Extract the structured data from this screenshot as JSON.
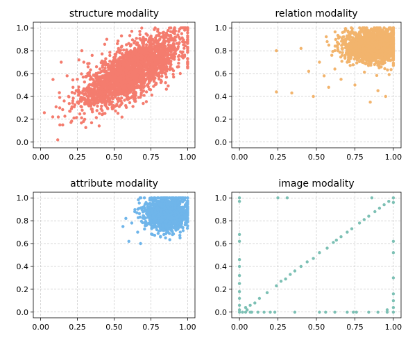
{
  "chart_data": [
    {
      "type": "scatter",
      "title": "structure modality",
      "color": "#f47c6e",
      "xlim": [
        -0.05,
        1.05
      ],
      "ylim": [
        -0.05,
        1.05
      ],
      "xticks": [
        "0.00",
        "0.25",
        "0.50",
        "0.75",
        "1.00"
      ],
      "yticks": [
        "0.0",
        "0.2",
        "0.4",
        "0.6",
        "0.8",
        "1.0"
      ],
      "grid": true,
      "description_of_points": [
        [
          0.14,
          0.7
        ],
        [
          0.18,
          0.58
        ],
        [
          0.12,
          0.22
        ],
        [
          0.13,
          0.3
        ],
        [
          0.16,
          0.36
        ],
        [
          0.19,
          0.4
        ],
        [
          0.15,
          0.15
        ],
        [
          0.2,
          0.27
        ],
        [
          0.22,
          0.48
        ],
        [
          0.25,
          0.55
        ],
        [
          0.26,
          0.72
        ],
        [
          0.28,
          0.8
        ],
        [
          0.3,
          0.45
        ],
        [
          0.32,
          0.6
        ],
        [
          0.34,
          0.35
        ],
        [
          0.36,
          0.52
        ],
        [
          0.38,
          0.66
        ],
        [
          0.4,
          0.42
        ],
        [
          0.42,
          0.58
        ],
        [
          0.44,
          0.7
        ],
        [
          0.46,
          0.48
        ],
        [
          0.48,
          0.62
        ],
        [
          0.5,
          0.55
        ],
        [
          0.52,
          0.68
        ],
        [
          0.54,
          0.74
        ],
        [
          0.56,
          0.6
        ],
        [
          0.58,
          0.78
        ],
        [
          0.6,
          0.66
        ],
        [
          0.62,
          0.72
        ],
        [
          0.64,
          0.82
        ],
        [
          0.66,
          0.7
        ],
        [
          0.68,
          0.76
        ],
        [
          0.7,
          0.86
        ],
        [
          0.72,
          0.78
        ],
        [
          0.74,
          0.84
        ],
        [
          0.76,
          0.9
        ],
        [
          0.78,
          0.8
        ],
        [
          0.8,
          0.88
        ],
        [
          0.82,
          0.92
        ],
        [
          0.84,
          0.86
        ],
        [
          0.86,
          0.94
        ],
        [
          0.88,
          0.9
        ],
        [
          0.9,
          0.96
        ],
        [
          0.92,
          0.92
        ],
        [
          0.94,
          0.97
        ],
        [
          0.96,
          0.95
        ],
        [
          0.98,
          0.98
        ],
        [
          1.0,
          0.99
        ],
        [
          0.45,
          0.9
        ],
        [
          0.55,
          0.93
        ],
        [
          0.3,
          0.2
        ],
        [
          0.4,
          0.25
        ],
        [
          0.6,
          0.38
        ],
        [
          0.7,
          0.45
        ],
        [
          0.85,
          0.52
        ],
        [
          0.95,
          0.6
        ]
      ]
    },
    {
      "type": "scatter",
      "title": "relation modality",
      "color": "#f2b46d",
      "xlim": [
        -0.05,
        1.05
      ],
      "ylim": [
        -0.05,
        1.05
      ],
      "xticks": [
        "0.00",
        "0.25",
        "0.50",
        "0.75",
        "1.00"
      ],
      "yticks": [
        "0.0",
        "0.2",
        "0.4",
        "0.6",
        "0.8",
        "1.0"
      ],
      "grid": true,
      "description_of_points": [
        [
          0.24,
          0.8
        ],
        [
          0.24,
          0.44
        ],
        [
          0.34,
          0.43
        ],
        [
          0.4,
          0.82
        ],
        [
          0.45,
          0.62
        ],
        [
          0.48,
          0.4
        ],
        [
          0.52,
          0.7
        ],
        [
          0.55,
          0.58
        ],
        [
          0.57,
          0.88
        ],
        [
          0.6,
          0.76
        ],
        [
          0.62,
          0.64
        ],
        [
          0.65,
          0.92
        ],
        [
          0.67,
          0.82
        ],
        [
          0.7,
          0.7
        ],
        [
          0.72,
          0.96
        ],
        [
          0.74,
          0.86
        ],
        [
          0.76,
          0.78
        ],
        [
          0.78,
          0.92
        ],
        [
          0.8,
          0.84
        ],
        [
          0.82,
          0.74
        ],
        [
          0.84,
          0.95
        ],
        [
          0.86,
          0.88
        ],
        [
          0.88,
          0.8
        ],
        [
          0.9,
          0.97
        ],
        [
          0.92,
          0.9
        ],
        [
          0.94,
          0.82
        ],
        [
          0.96,
          0.98
        ],
        [
          0.98,
          0.92
        ],
        [
          1.0,
          0.99
        ],
        [
          0.85,
          0.35
        ],
        [
          0.9,
          0.45
        ],
        [
          0.75,
          0.5
        ],
        [
          0.95,
          0.4
        ],
        [
          0.66,
          0.55
        ],
        [
          0.58,
          0.48
        ],
        [
          0.99,
          0.72
        ]
      ]
    },
    {
      "type": "scatter",
      "title": "attribute modality",
      "color": "#6fb5ea",
      "xlim": [
        -0.05,
        1.05
      ],
      "ylim": [
        -0.05,
        1.05
      ],
      "xticks": [
        "0.00",
        "0.25",
        "0.50",
        "0.75",
        "1.00"
      ],
      "yticks": [
        "0.0",
        "0.2",
        "0.4",
        "0.6",
        "0.8",
        "1.0"
      ],
      "grid": true,
      "description_of_points": [
        [
          0.56,
          0.75
        ],
        [
          0.58,
          0.82
        ],
        [
          0.6,
          0.62
        ],
        [
          0.62,
          0.78
        ],
        [
          0.64,
          0.88
        ],
        [
          0.66,
          0.7
        ],
        [
          0.68,
          0.6
        ],
        [
          0.7,
          0.84
        ],
        [
          0.72,
          0.76
        ],
        [
          0.74,
          0.92
        ],
        [
          0.76,
          0.68
        ],
        [
          0.78,
          0.86
        ],
        [
          0.8,
          0.8
        ],
        [
          0.82,
          0.94
        ],
        [
          0.84,
          0.72
        ],
        [
          0.86,
          0.88
        ],
        [
          0.88,
          0.82
        ],
        [
          0.9,
          0.96
        ],
        [
          0.92,
          0.78
        ],
        [
          0.94,
          0.9
        ],
        [
          0.96,
          0.86
        ],
        [
          0.98,
          0.98
        ],
        [
          1.0,
          0.92
        ],
        [
          0.75,
          0.98
        ],
        [
          0.85,
          0.65
        ],
        [
          0.95,
          0.7
        ]
      ]
    },
    {
      "type": "scatter",
      "title": "image modality",
      "color": "#7cc0b4",
      "xlim": [
        -0.05,
        1.05
      ],
      "ylim": [
        -0.05,
        1.05
      ],
      "xticks": [
        "0.00",
        "0.25",
        "0.50",
        "0.75",
        "1.00"
      ],
      "yticks": [
        "0.0",
        "0.2",
        "0.4",
        "0.6",
        "0.8",
        "1.0"
      ],
      "grid": true,
      "description_of_points": [
        [
          0.0,
          1.0
        ],
        [
          0.0,
          0.97
        ],
        [
          0.0,
          0.68
        ],
        [
          0.0,
          0.62
        ],
        [
          0.0,
          0.46
        ],
        [
          0.0,
          0.4
        ],
        [
          0.0,
          0.32
        ],
        [
          0.0,
          0.25
        ],
        [
          0.0,
          0.18
        ],
        [
          0.0,
          0.12
        ],
        [
          0.0,
          0.06
        ],
        [
          0.0,
          0.02
        ],
        [
          0.0,
          0.0
        ],
        [
          0.02,
          0.0
        ],
        [
          0.04,
          0.0
        ],
        [
          0.08,
          0.0
        ],
        [
          0.12,
          0.0
        ],
        [
          0.16,
          0.0
        ],
        [
          0.2,
          0.0
        ],
        [
          0.36,
          0.0
        ],
        [
          0.52,
          0.0
        ],
        [
          0.56,
          0.0
        ],
        [
          0.62,
          0.0
        ],
        [
          0.7,
          0.0
        ],
        [
          0.76,
          0.0
        ],
        [
          0.84,
          0.0
        ],
        [
          0.9,
          0.0
        ],
        [
          0.96,
          0.0
        ],
        [
          1.0,
          0.0
        ],
        [
          1.0,
          0.04
        ],
        [
          1.0,
          0.1
        ],
        [
          1.0,
          0.16
        ],
        [
          1.0,
          0.3
        ],
        [
          1.0,
          0.52
        ],
        [
          1.0,
          0.62
        ],
        [
          1.0,
          0.96
        ],
        [
          1.0,
          1.0
        ],
        [
          0.97,
          0.97
        ],
        [
          0.96,
          0.02
        ],
        [
          0.04,
          0.04
        ],
        [
          0.07,
          0.06
        ],
        [
          0.1,
          0.08
        ],
        [
          0.13,
          0.12
        ],
        [
          0.18,
          0.17
        ],
        [
          0.24,
          0.23
        ],
        [
          0.27,
          0.27
        ],
        [
          0.3,
          0.29
        ],
        [
          0.33,
          0.33
        ],
        [
          0.36,
          0.36
        ],
        [
          0.4,
          0.4
        ],
        [
          0.44,
          0.44
        ],
        [
          0.48,
          0.47
        ],
        [
          0.52,
          0.52
        ],
        [
          0.57,
          0.56
        ],
        [
          0.61,
          0.61
        ],
        [
          0.63,
          0.63
        ],
        [
          0.66,
          0.66
        ],
        [
          0.7,
          0.7
        ],
        [
          0.73,
          0.73
        ],
        [
          0.78,
          0.78
        ],
        [
          0.81,
          0.81
        ],
        [
          0.84,
          0.84
        ],
        [
          0.88,
          0.88
        ],
        [
          0.91,
          0.91
        ],
        [
          0.94,
          0.94
        ],
        [
          0.25,
          1.0
        ],
        [
          0.31,
          1.0
        ],
        [
          0.86,
          1.0
        ],
        [
          0.74,
          0.0
        ],
        [
          0.23,
          0.0
        ],
        [
          0.07,
          0.0
        ],
        [
          0.05,
          0.02
        ]
      ]
    }
  ]
}
